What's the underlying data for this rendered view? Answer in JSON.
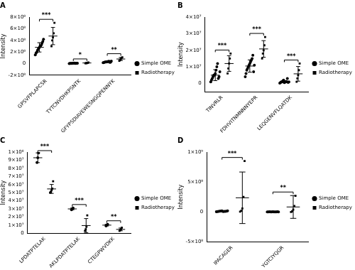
{
  "chart_data": [
    {
      "type": "scatter",
      "title": "A",
      "y_label": "Intensity",
      "grid": false,
      "legend": "right",
      "categories": [
        "GPSVFPLAPCSR",
        "TYTCNVDHKPSNTK",
        "GFYPSDIAVEWESNGQPENNYK"
      ],
      "annotations": [
        "***",
        "*",
        "**"
      ],
      "ylim": [
        -200000000,
        800000000
      ],
      "yticks": [
        {
          "value": -200000000,
          "label": "-2×10⁸"
        },
        0,
        {
          "value": 200000000,
          "label": "2×10⁸"
        },
        {
          "value": 400000000,
          "label": "4×10⁸"
        },
        {
          "value": 600000000,
          "label": "6×10⁸"
        },
        {
          "value": 800000000,
          "label": "8×10⁸"
        }
      ],
      "series": [
        {
          "name": "Simple OME",
          "color": "#000000",
          "marker": "circle",
          "values": [
            [
              150000000,
              180000000,
              200000000,
              230000000,
              250000000,
              270000000,
              290000000,
              300000000,
              320000000,
              350000000,
              380000000,
              420000000
            ],
            [
              2000000,
              3000000,
              4000000,
              5000000,
              5000000,
              6000000,
              8000000,
              10000000,
              4000000,
              3000000,
              6000000,
              7000000
            ],
            [
              15000000,
              20000000,
              25000000,
              28000000,
              30000000,
              32000000,
              35000000,
              38000000,
              40000000,
              22000000,
              27000000,
              45000000
            ]
          ],
          "mean": [
            280000000,
            5000000,
            30000000
          ],
          "sd": [
            80000000,
            2000000,
            9000000
          ]
        },
        {
          "name": "Radiotherapy-reduced OME",
          "color": "#000000",
          "marker": "square",
          "values": [
            [
              300000000,
              400000000,
              450000000,
              520000000,
              700000000
            ],
            [
              5000000,
              8000000,
              10000000,
              15000000,
              20000000
            ],
            [
              50000000,
              60000000,
              80000000,
              100000000,
              110000000
            ]
          ],
          "mean": [
            474000000,
            12000000,
            80000000
          ],
          "sd": [
            148000000,
            6000000,
            25000000
          ]
        }
      ]
    },
    {
      "type": "scatter",
      "title": "B",
      "y_label": "Intensity",
      "grid": false,
      "legend": "right",
      "categories": [
        "TINVRLR",
        "FDHVITNMNNNYEPR",
        "LEQGENVFLQATDK"
      ],
      "annotations": [
        "***",
        "***",
        "***"
      ],
      "ylim": [
        -5000000,
        40000000
      ],
      "yticks": [
        0,
        {
          "value": 10000000,
          "label": "1×10⁷"
        },
        {
          "value": 20000000,
          "label": "2×10⁷"
        },
        {
          "value": 30000000,
          "label": "3×10⁷"
        },
        {
          "value": 40000000,
          "label": "4×10⁷"
        }
      ],
      "series": [
        {
          "name": "Simple OME",
          "color": "#000000",
          "marker": "circle",
          "values": [
            [
              1000000,
              2000000,
              3000000,
              4000000,
              5000000,
              5000000,
              6000000,
              8000000,
              10000000,
              12000000,
              3000000,
              4000000,
              7000000
            ],
            [
              4000000,
              6000000,
              8000000,
              9000000,
              10000000,
              11000000,
              12000000,
              13000000,
              14000000,
              15000000,
              17000000,
              7000000,
              11000000
            ],
            [
              200000,
              500000,
              1000000,
              1000000,
              1500000,
              2000000,
              500000,
              800000,
              1000000,
              1200000,
              3000000,
              600000,
              1000000
            ]
          ],
          "mean": [
            5000000,
            10500000,
            1100000
          ],
          "sd": [
            3300000,
            3700000,
            700000
          ]
        },
        {
          "name": "Radiotherapy-reduced OME",
          "color": "#000000",
          "marker": "square",
          "values": [
            [
              6000000,
              9000000,
              12000000,
              15000000,
              18000000
            ],
            [
              15000000,
              18000000,
              20000000,
              23000000,
              28000000
            ],
            [
              1000000,
              3000000,
              5000000,
              8000000,
              12000000
            ]
          ],
          "mean": [
            12000000,
            20800000,
            5800000
          ],
          "sd": [
            4700000,
            5000000,
            4400000
          ]
        }
      ]
    },
    {
      "type": "scatter",
      "title": "C",
      "y_label": "Intensity",
      "grid": false,
      "legend": "right",
      "categories": [
        "LPDATPTELAK",
        "AKLPDATPTELAK",
        "CTEGPWVDKK"
      ],
      "annotations": [
        "***",
        "***",
        "**"
      ],
      "ylim": [
        0,
        100000000
      ],
      "yticks": [
        0,
        {
          "value": 10000000,
          "label": "1×10⁷"
        },
        {
          "value": 20000000,
          "label": "2×10⁷"
        },
        {
          "value": 30000000,
          "label": "3×10⁷"
        },
        {
          "value": 40000000,
          "label": "4×10⁷"
        },
        {
          "value": 50000000,
          "label": "5×10⁷"
        },
        {
          "value": 60000000,
          "label": "6×10⁷"
        },
        {
          "value": 70000000,
          "label": "7×10⁷"
        },
        {
          "value": 80000000,
          "label": "8×10⁷"
        },
        {
          "value": 90000000,
          "label": "9×10⁷"
        },
        {
          "value": 100000000,
          "label": "1×10⁸"
        }
      ],
      "series": [
        {
          "name": "Simple OME",
          "color": "#000000",
          "marker": "circle",
          "values": [
            [
              87000000,
              93000000,
              99000000
            ],
            [
              29000000,
              30000000,
              31000000
            ],
            [
              9000000,
              10000000,
              11000000
            ]
          ],
          "mean": [
            93000000,
            30000000,
            10000000
          ],
          "sd": [
            6000000,
            1000000,
            1000000
          ]
        },
        {
          "name": "Radiotherapy-reduced OME",
          "color": "#000000",
          "marker": "square",
          "values": [
            [
              50000000,
              51000000,
              53000000,
              55000000,
              64000000
            ],
            [
              3000000,
              5000000,
              8000000,
              22000000
            ],
            [
              3000000,
              4000000,
              5000000,
              7000000
            ]
          ],
          "mean": [
            54600000,
            9500000,
            4750000
          ],
          "sd": [
            5500000,
            8600000,
            1700000
          ]
        }
      ]
    },
    {
      "type": "scatter",
      "title": "D",
      "y_label": "Intensity",
      "grid": false,
      "legend": "right",
      "categories": [
        "IPACAGER",
        "YGTCIYQGR"
      ],
      "annotations": [
        "***",
        "**"
      ],
      "ylim": [
        -500000000,
        1000000000
      ],
      "yticks": [
        {
          "value": -500000000,
          "label": "-5×10⁸"
        },
        0,
        {
          "value": 500000000,
          "label": "5×10⁸"
        },
        {
          "value": 1000000000,
          "label": "1×10⁹"
        }
      ],
      "series": [
        {
          "name": "Simple OME",
          "color": "#000000",
          "marker": "circle",
          "values": [
            [
              5000000,
              8000000,
              10000000,
              12000000,
              15000000,
              20000000,
              6000000,
              9000000,
              11000000,
              14000000,
              18000000
            ],
            [
              1000000,
              2000000,
              3000000,
              1000000,
              2000000,
              3000000,
              2000000,
              1000000,
              2000000,
              3000000,
              2000000
            ]
          ],
          "mean": [
            12000000,
            2000000
          ],
          "sd": [
            5000000,
            1000000
          ]
        },
        {
          "name": "Radiotherapy-reduced OME",
          "color": "#000000",
          "marker": "square",
          "values": [
            [
              5000000,
              20000000,
              60000000,
              250000000,
              850000000
            ],
            [
              0,
              10000000,
              40000000,
              100000000,
              270000000
            ]
          ],
          "mean": [
            237000000,
            84000000
          ],
          "sd": [
            430000000,
            190000000
          ]
        }
      ]
    }
  ]
}
